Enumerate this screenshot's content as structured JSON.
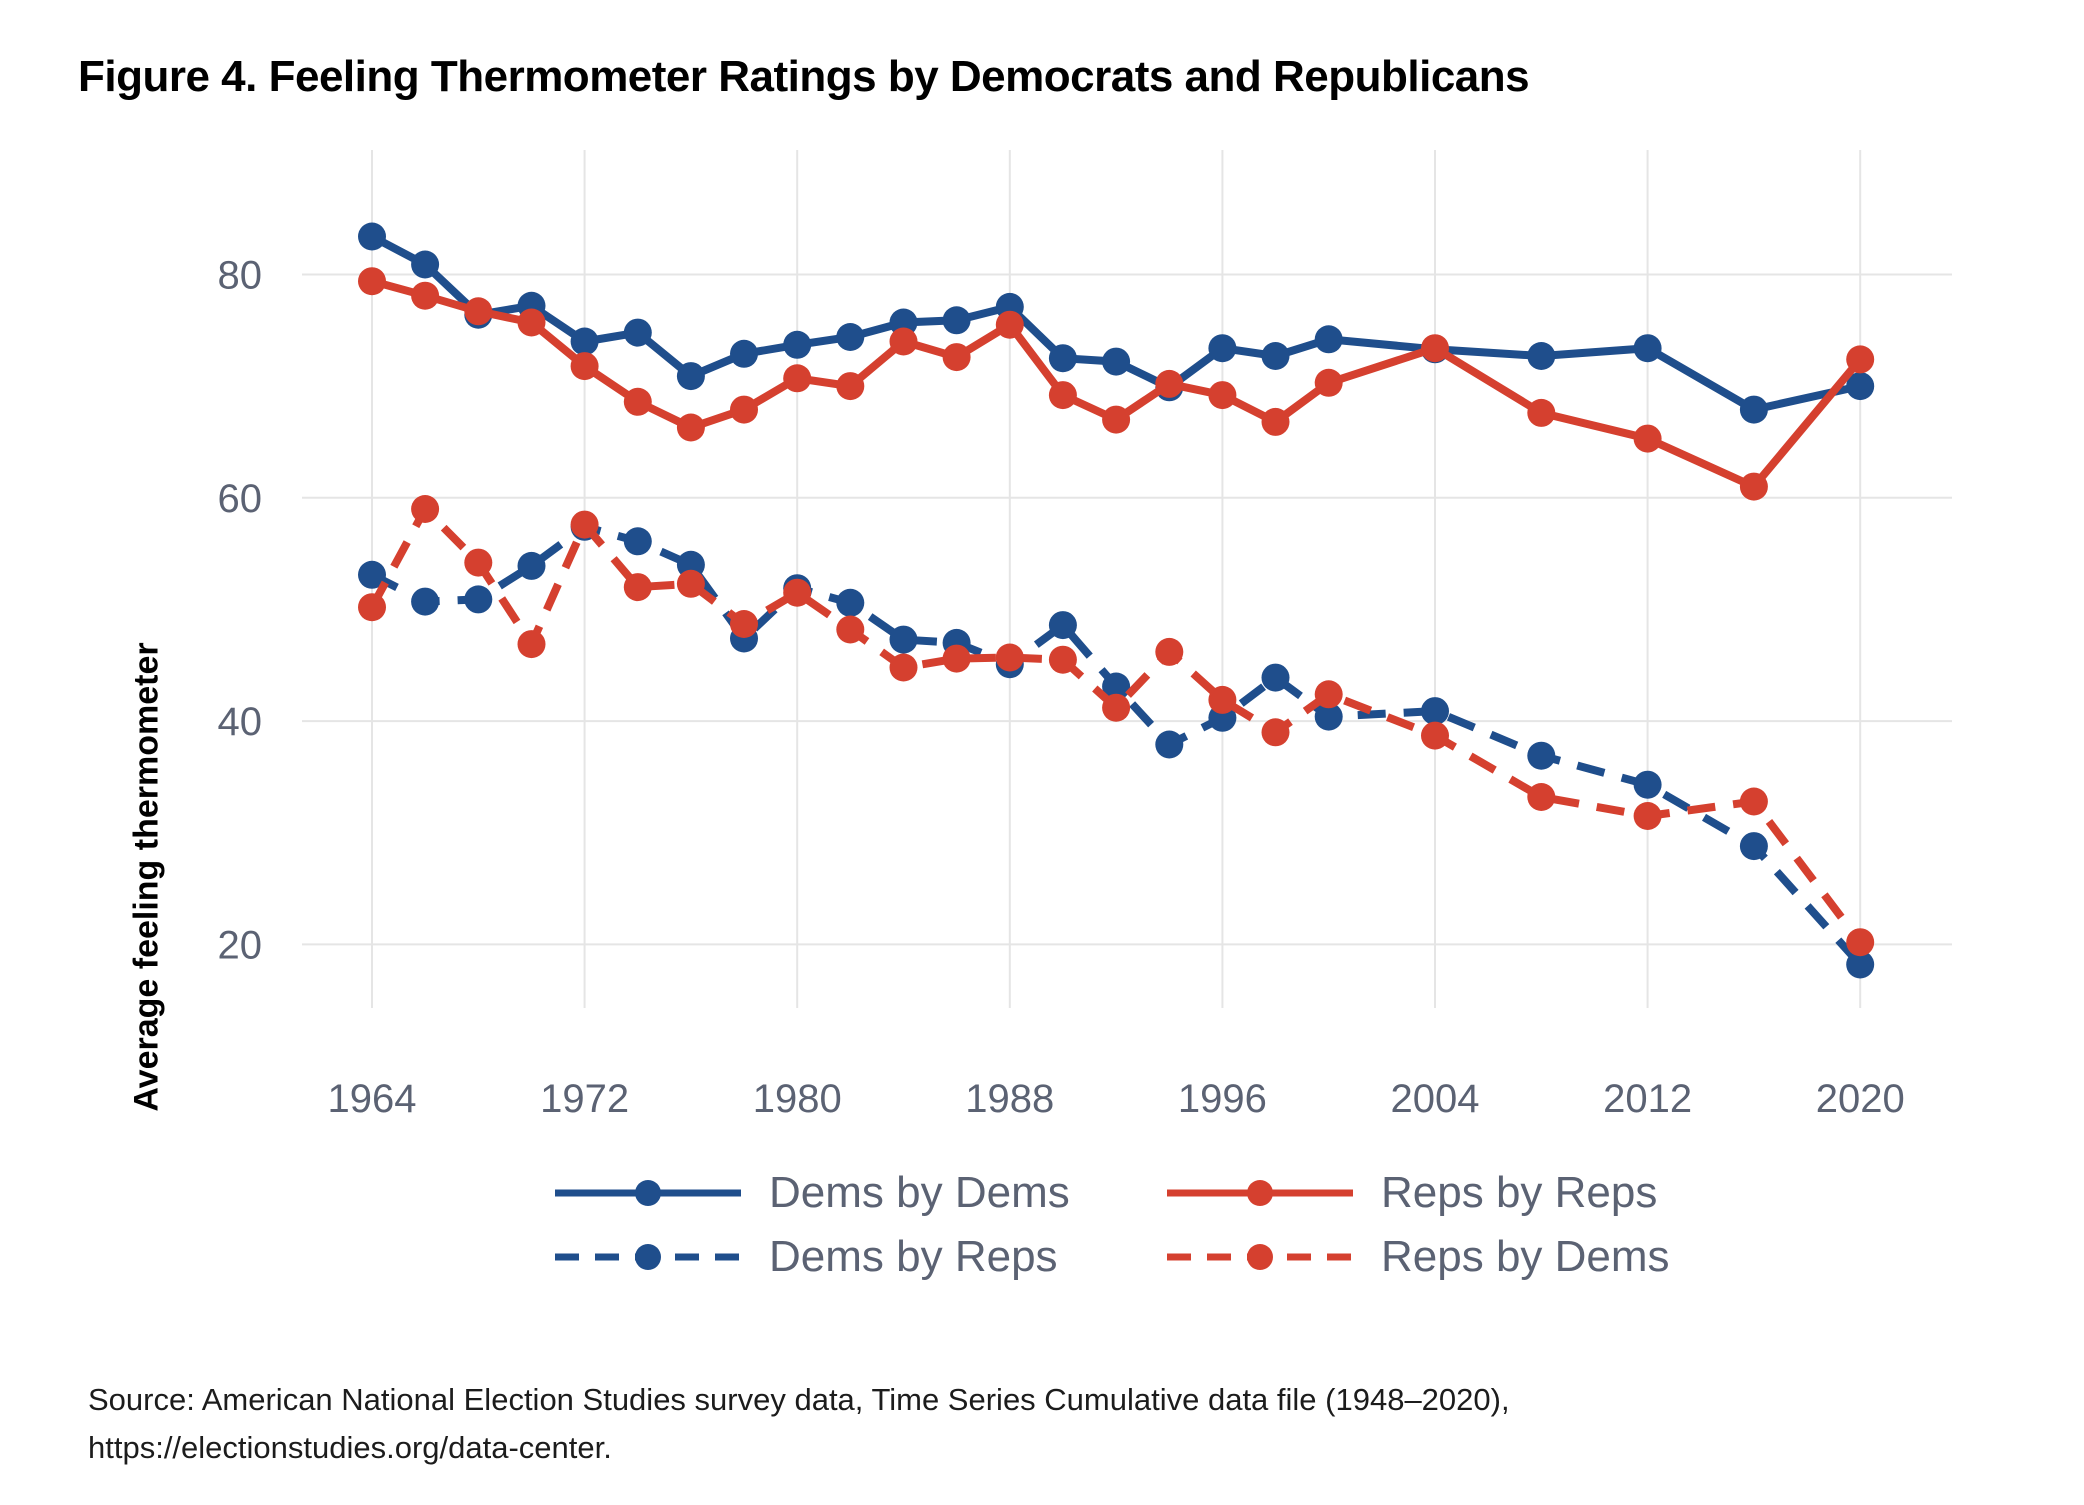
{
  "figure": {
    "title": "Figure 4. Feeling Thermometer Ratings by Democrats and Republicans",
    "source_line1": "Source: American National Election Studies survey data, Time Series Cumulative data file (1948–2020),",
    "source_line2": "https://electionstudies.org/data-center.",
    "chart_data": {
      "type": "line",
      "title": "Figure 4. Feeling Thermometer Ratings by Democrats and Republicans",
      "xlabel": "",
      "ylabel": "Average feeling thermometer",
      "x": [
        1964,
        1966,
        1968,
        1970,
        1972,
        1974,
        1976,
        1978,
        1980,
        1982,
        1984,
        1986,
        1988,
        1990,
        1992,
        1994,
        1996,
        1998,
        2000,
        2004,
        2008,
        2012,
        2016,
        2020
      ],
      "x_ticks": [
        1964,
        1972,
        1980,
        1988,
        1996,
        2004,
        2012,
        2020
      ],
      "y_ticks": [
        20,
        40,
        60,
        80
      ],
      "ylim": [
        14,
        91
      ],
      "grid": true,
      "legend_position": "bottom-center",
      "colors": {
        "dem_blue": "#1f4e8c",
        "rep_red": "#d5402f",
        "tick_text": "#5b6273",
        "gridline": "#e5e5e5"
      },
      "series": [
        {
          "name": "Dems by Dems",
          "color": "#1f4e8c",
          "style": "solid",
          "values": [
            83.4,
            80.9,
            76.4,
            77.2,
            74.0,
            74.8,
            70.9,
            72.9,
            73.7,
            74.4,
            75.7,
            75.9,
            77.1,
            72.5,
            72.2,
            69.9,
            73.4,
            72.7,
            74.2,
            73.3,
            72.7,
            73.4,
            67.9,
            70.0
          ]
        },
        {
          "name": "Reps by Reps",
          "color": "#d5402f",
          "style": "solid",
          "values": [
            79.4,
            78.1,
            76.7,
            75.7,
            71.8,
            68.6,
            66.3,
            67.9,
            70.7,
            70.0,
            74.0,
            72.6,
            75.5,
            69.2,
            67.0,
            70.2,
            69.2,
            66.8,
            70.3,
            73.4,
            67.6,
            65.3,
            61.0,
            72.4
          ]
        },
        {
          "name": "Dems by Reps",
          "color": "#1f4e8c",
          "style": "dashed",
          "values": [
            53.1,
            50.7,
            50.9,
            53.9,
            57.4,
            56.1,
            54.0,
            47.4,
            51.9,
            50.6,
            47.3,
            47.0,
            45.1,
            48.6,
            43.1,
            37.9,
            40.3,
            43.9,
            40.4,
            40.9,
            36.9,
            34.3,
            28.8,
            18.2
          ]
        },
        {
          "name": "Reps by Dems",
          "color": "#d5402f",
          "style": "dashed",
          "values": [
            50.2,
            59.0,
            54.2,
            46.9,
            57.6,
            52.0,
            52.3,
            48.7,
            51.5,
            48.2,
            44.8,
            45.6,
            45.7,
            45.5,
            41.2,
            46.2,
            41.9,
            39.0,
            42.4,
            38.7,
            33.2,
            31.5,
            32.8,
            20.2
          ]
        }
      ]
    }
  }
}
